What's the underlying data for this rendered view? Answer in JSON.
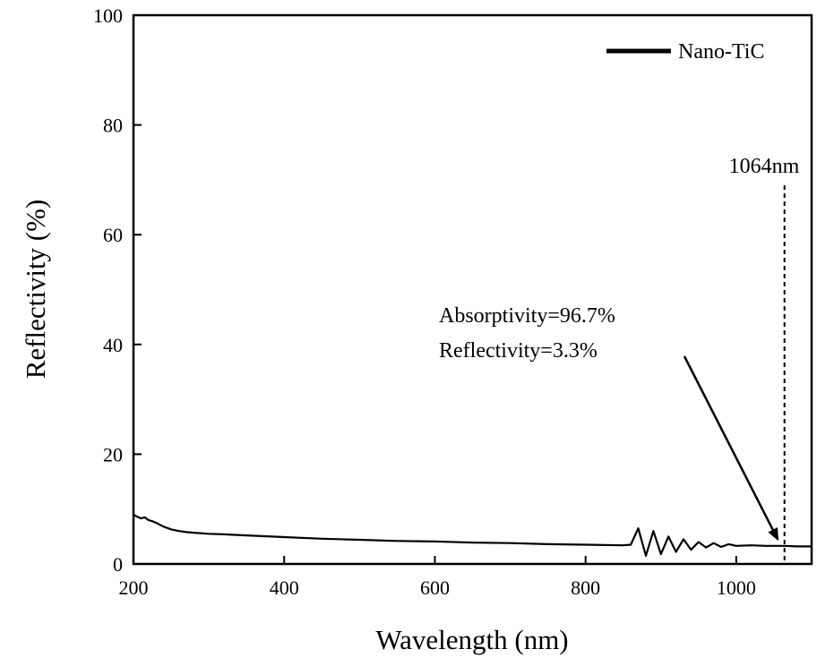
{
  "chart_data": {
    "type": "line",
    "title": "",
    "xlabel": "Wavelength (nm)",
    "ylabel": "Reflectivity (%)",
    "xlim": [
      200,
      1100
    ],
    "ylim": [
      0,
      100
    ],
    "xticks": [
      200,
      400,
      600,
      800,
      1000
    ],
    "yticks": [
      0,
      20,
      40,
      60,
      80,
      100
    ],
    "grid": false,
    "legend": {
      "placement": "top-right",
      "entries": [
        {
          "name": "Nano-TiC",
          "color": "#000000"
        }
      ]
    },
    "series": [
      {
        "name": "Nano-TiC",
        "color": "#000000",
        "x": [
          200,
          205,
          210,
          215,
          220,
          225,
          230,
          240,
          250,
          260,
          270,
          280,
          300,
          320,
          350,
          400,
          450,
          500,
          550,
          600,
          650,
          700,
          750,
          800,
          850,
          860,
          870,
          880,
          890,
          900,
          910,
          920,
          930,
          940,
          950,
          960,
          970,
          980,
          990,
          1000,
          1020,
          1040,
          1060,
          1064,
          1080,
          1100
        ],
        "y": [
          9.0,
          8.6,
          8.3,
          8.5,
          8.0,
          7.8,
          7.5,
          6.8,
          6.3,
          6.0,
          5.8,
          5.7,
          5.5,
          5.4,
          5.2,
          4.9,
          4.6,
          4.4,
          4.2,
          4.1,
          3.9,
          3.8,
          3.6,
          3.5,
          3.4,
          3.5,
          6.5,
          1.5,
          6.0,
          1.8,
          5.0,
          2.2,
          4.5,
          2.6,
          4.0,
          3.0,
          3.8,
          3.1,
          3.6,
          3.3,
          3.4,
          3.3,
          3.3,
          3.3,
          3.2,
          3.2
        ]
      }
    ],
    "annotations": {
      "line1": "Absorptivity=96.7%",
      "line2": "Reflectivity=3.3%",
      "arrow_target": {
        "x": 1055,
        "y": 4.5
      },
      "vline_x": 1064,
      "vline_label": "1064nm",
      "vline_top_y": 69
    }
  }
}
